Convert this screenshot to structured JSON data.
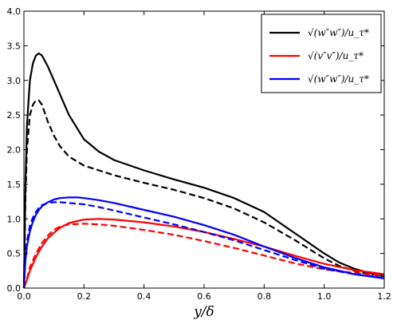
{
  "chart_data": {
    "type": "line",
    "xlabel": "y/δ",
    "ylabel": "",
    "xlim": [
      0.0,
      1.2
    ],
    "ylim": [
      0.0,
      4.0
    ],
    "x_ticks": [
      "0.0",
      "0.2",
      "0.4",
      "0.6",
      "0.8",
      "1.0",
      "1.2"
    ],
    "y_ticks": [
      "0.0",
      "0.5",
      "1.0",
      "1.5",
      "2.0",
      "2.5",
      "3.0",
      "3.5",
      "4.0"
    ],
    "legend_position": "top-right",
    "legend": [
      {
        "label": "√(w″w″)/u_τ*",
        "color": "#000000"
      },
      {
        "label": "√(v″v″)/u_τ*",
        "color": "#ff0000"
      },
      {
        "label": "√(w″w″)/u_τ*",
        "color": "#0000ff"
      }
    ],
    "series": [
      {
        "color": "#000000",
        "dash": "solid",
        "x": [
          0.0,
          0.005,
          0.01,
          0.02,
          0.03,
          0.04,
          0.05,
          0.06,
          0.08,
          0.1,
          0.12,
          0.15,
          0.2,
          0.25,
          0.3,
          0.4,
          0.5,
          0.6,
          0.7,
          0.8,
          0.9,
          1.0,
          1.05,
          1.1,
          1.15,
          1.2
        ],
        "y": [
          0.0,
          1.5,
          2.35,
          3.0,
          3.25,
          3.36,
          3.39,
          3.36,
          3.2,
          3.0,
          2.8,
          2.5,
          2.15,
          1.97,
          1.85,
          1.7,
          1.57,
          1.45,
          1.3,
          1.1,
          0.8,
          0.5,
          0.37,
          0.28,
          0.22,
          0.18
        ]
      },
      {
        "color": "#000000",
        "dash": "dashed",
        "x": [
          0.0,
          0.005,
          0.01,
          0.02,
          0.03,
          0.04,
          0.05,
          0.06,
          0.08,
          0.1,
          0.12,
          0.15,
          0.2,
          0.25,
          0.3,
          0.4,
          0.5,
          0.6,
          0.7,
          0.8,
          0.9,
          1.0,
          1.05,
          1.1,
          1.15,
          1.2
        ],
        "y": [
          0.0,
          1.3,
          2.0,
          2.5,
          2.65,
          2.71,
          2.71,
          2.65,
          2.4,
          2.2,
          2.05,
          1.9,
          1.77,
          1.7,
          1.63,
          1.52,
          1.42,
          1.3,
          1.15,
          0.95,
          0.7,
          0.43,
          0.32,
          0.25,
          0.2,
          0.17
        ]
      },
      {
        "color": "#ff0000",
        "dash": "solid",
        "x": [
          0.0,
          0.01,
          0.02,
          0.04,
          0.06,
          0.08,
          0.1,
          0.12,
          0.15,
          0.2,
          0.25,
          0.3,
          0.4,
          0.5,
          0.6,
          0.7,
          0.8,
          0.9,
          1.0,
          1.1,
          1.2
        ],
        "y": [
          0.0,
          0.12,
          0.25,
          0.45,
          0.6,
          0.72,
          0.8,
          0.87,
          0.94,
          0.99,
          1.0,
          0.99,
          0.95,
          0.89,
          0.81,
          0.71,
          0.6,
          0.47,
          0.35,
          0.26,
          0.2
        ]
      },
      {
        "color": "#ff0000",
        "dash": "dashed",
        "x": [
          0.0,
          0.01,
          0.02,
          0.04,
          0.06,
          0.08,
          0.1,
          0.12,
          0.15,
          0.2,
          0.25,
          0.3,
          0.4,
          0.5,
          0.6,
          0.7,
          0.8,
          0.9,
          1.0,
          1.1,
          1.2
        ],
        "y": [
          0.0,
          0.14,
          0.3,
          0.5,
          0.65,
          0.76,
          0.84,
          0.89,
          0.92,
          0.93,
          0.92,
          0.9,
          0.84,
          0.77,
          0.68,
          0.58,
          0.47,
          0.36,
          0.27,
          0.22,
          0.18
        ]
      },
      {
        "color": "#0000ff",
        "dash": "solid",
        "x": [
          0.0,
          0.005,
          0.01,
          0.02,
          0.03,
          0.04,
          0.05,
          0.06,
          0.08,
          0.1,
          0.12,
          0.15,
          0.18,
          0.2,
          0.25,
          0.3,
          0.4,
          0.5,
          0.6,
          0.7,
          0.8,
          0.9,
          1.0,
          1.1,
          1.2
        ],
        "y": [
          0.0,
          0.4,
          0.6,
          0.82,
          0.96,
          1.06,
          1.13,
          1.18,
          1.24,
          1.28,
          1.3,
          1.31,
          1.31,
          1.3,
          1.27,
          1.23,
          1.13,
          1.03,
          0.91,
          0.77,
          0.6,
          0.44,
          0.3,
          0.2,
          0.14
        ]
      },
      {
        "color": "#0000ff",
        "dash": "dashed",
        "x": [
          0.0,
          0.005,
          0.01,
          0.02,
          0.03,
          0.04,
          0.05,
          0.06,
          0.08,
          0.1,
          0.12,
          0.15,
          0.2,
          0.25,
          0.3,
          0.4,
          0.5,
          0.6,
          0.7,
          0.8,
          0.9,
          1.0,
          1.1,
          1.2
        ],
        "y": [
          0.0,
          0.45,
          0.68,
          0.9,
          1.02,
          1.1,
          1.16,
          1.2,
          1.23,
          1.24,
          1.24,
          1.23,
          1.21,
          1.17,
          1.12,
          1.02,
          0.92,
          0.81,
          0.69,
          0.55,
          0.41,
          0.28,
          0.2,
          0.15
        ]
      }
    ]
  }
}
